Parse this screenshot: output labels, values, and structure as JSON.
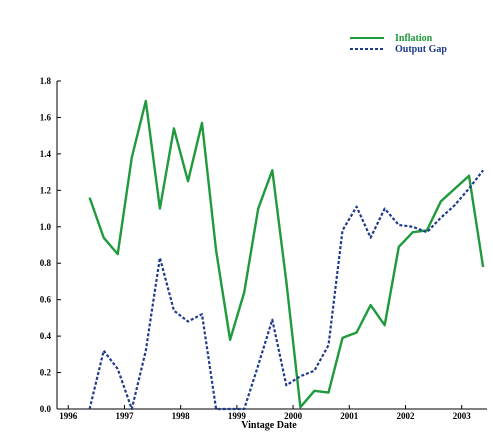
{
  "chart_data": {
    "type": "line",
    "title": "",
    "xlabel": "Vintage Date",
    "ylabel": "",
    "xlim": [
      1995.8,
      2003.45
    ],
    "ylim": [
      0,
      1.8
    ],
    "xticks": [
      1996,
      1997,
      1998,
      1999,
      2000,
      2001,
      2002,
      2003
    ],
    "xtick_labels": [
      "1996",
      "1997",
      "1998",
      "1999",
      "2000",
      "2001",
      "2002",
      "2003"
    ],
    "yticks": [
      0,
      0.2,
      0.4,
      0.6,
      0.8,
      1.0,
      1.2,
      1.4,
      1.6,
      1.8
    ],
    "ytick_labels": [
      "0.0",
      "0.2",
      "0.4",
      "0.6",
      "0.8",
      "1.0",
      "1.2",
      "1.4",
      "1.6",
      "1.8"
    ],
    "grid": false,
    "legend_position": "top-right",
    "series": [
      {
        "name": "Inflation",
        "color": "#1f9a3c",
        "style": "solid",
        "x": [
          1996.38,
          1996.63,
          1996.88,
          1997.13,
          1997.38,
          1997.63,
          1997.88,
          1998.13,
          1998.38,
          1998.63,
          1998.88,
          1999.13,
          1999.38,
          1999.63,
          1999.88,
          2000.13,
          2000.38,
          2000.63,
          2000.88,
          2001.13,
          2001.38,
          2001.63,
          2001.88,
          2002.13,
          2002.38,
          2002.63,
          2002.88,
          2003.13,
          2003.38
        ],
        "y": [
          1.16,
          0.94,
          0.85,
          1.38,
          1.69,
          1.1,
          1.54,
          1.25,
          1.57,
          0.87,
          0.38,
          0.64,
          1.1,
          1.31,
          0.7,
          0.01,
          0.1,
          0.09,
          0.39,
          0.42,
          0.57,
          0.46,
          0.89,
          0.97,
          0.98,
          1.14,
          1.21,
          1.28,
          0.78
        ]
      },
      {
        "name": "Output Gap",
        "color": "#1f3c8c",
        "style": "dashed",
        "x": [
          1996.38,
          1996.63,
          1996.88,
          1997.13,
          1997.38,
          1997.63,
          1997.88,
          1998.13,
          1998.38,
          1998.63,
          1998.88,
          1999.13,
          1999.38,
          1999.63,
          1999.88,
          2000.13,
          2000.38,
          2000.63,
          2000.88,
          2001.13,
          2001.38,
          2001.63,
          2001.88,
          2002.13,
          2002.38,
          2002.63,
          2002.88,
          2003.13,
          2003.38
        ],
        "y": [
          0.0,
          0.32,
          0.22,
          0.0,
          0.32,
          0.83,
          0.54,
          0.48,
          0.52,
          0.0,
          0.0,
          0.0,
          0.24,
          0.49,
          0.13,
          0.18,
          0.21,
          0.35,
          0.98,
          1.11,
          0.94,
          1.1,
          1.01,
          1.0,
          0.97,
          1.05,
          1.12,
          1.21,
          1.31
        ]
      }
    ]
  }
}
